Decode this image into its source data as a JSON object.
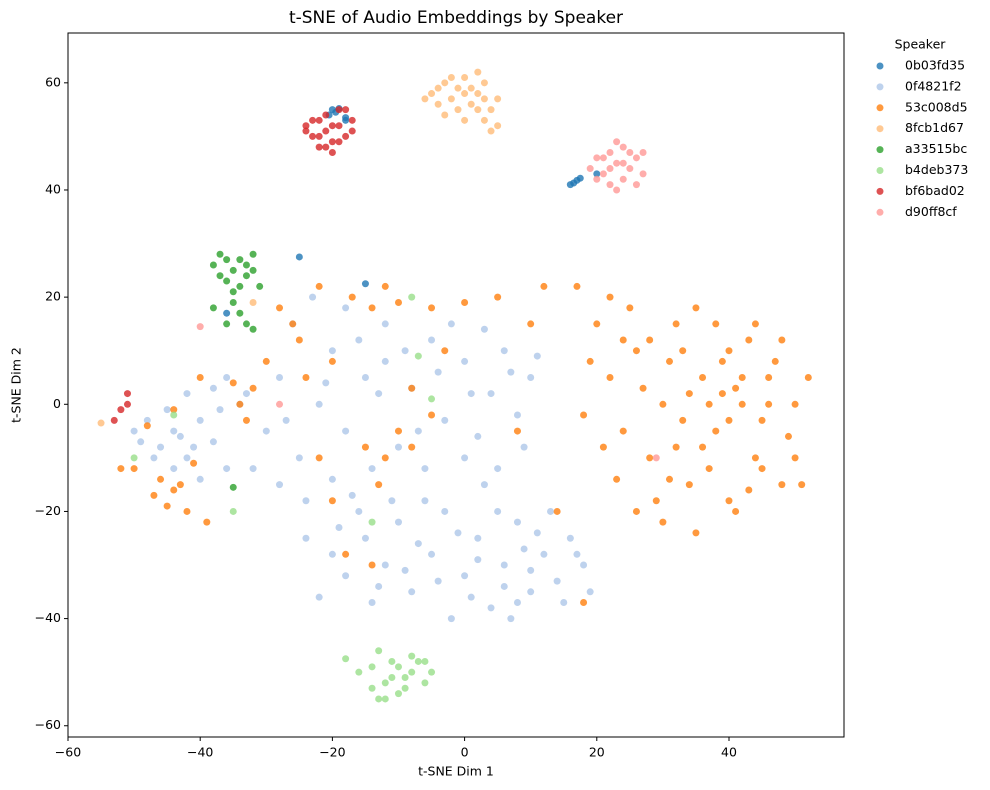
{
  "chart_data": {
    "type": "scatter",
    "title": "t-SNE of Audio Embeddings by Speaker",
    "xlabel": "t-SNE Dim 1",
    "ylabel": "t-SNE Dim 2",
    "legend_title": "Speaker",
    "legend": "right",
    "xlim": [
      -60,
      57.4
    ],
    "ylim": [
      -62.1,
      69.3
    ],
    "xticks": [
      {
        "value": -60,
        "label": "−60"
      },
      {
        "value": -40,
        "label": "−40"
      },
      {
        "value": -20,
        "label": "−20"
      },
      0,
      20,
      40
    ],
    "yticks": [
      {
        "value": -60,
        "label": "−60"
      },
      {
        "value": -40,
        "label": "−40"
      },
      {
        "value": -20,
        "label": "−20"
      },
      0,
      20,
      40,
      60
    ],
    "series": [
      {
        "name": "0b03fd35",
        "color": "#1f77b4",
        "x": [
          -20,
          -19.5,
          -20.5,
          -19,
          -18,
          16,
          16.5,
          17,
          17.5,
          20,
          -25,
          -15,
          -36,
          -18
        ],
        "y": [
          55,
          54.5,
          54,
          55.2,
          53,
          41,
          41.3,
          41.8,
          42.2,
          43,
          27.5,
          22.5,
          17,
          53.5
        ]
      },
      {
        "name": "0f4821f2",
        "color": "#aec7e8",
        "x": [
          -15,
          -12,
          -10,
          -8,
          -5,
          -3,
          0,
          2,
          4,
          6,
          8,
          10,
          12,
          14,
          16,
          18,
          -18,
          -20,
          -22,
          -24,
          -14,
          -6,
          -2,
          3,
          7,
          11,
          15,
          19,
          -11,
          -16,
          5,
          1,
          -7,
          9,
          13,
          -1,
          -9,
          6,
          17,
          -19,
          -13,
          8,
          -4,
          2,
          10,
          -30,
          -28,
          -25,
          -22,
          -20,
          -18,
          -15,
          -12,
          -10,
          -8,
          -5,
          -3,
          0,
          2,
          4,
          6,
          8,
          10,
          -26,
          -23,
          -18,
          -14,
          -6,
          0,
          5,
          -32,
          -28,
          -24,
          -20,
          -16,
          -9,
          -2,
          3,
          7,
          11,
          -33,
          -27,
          -21,
          -13,
          -7,
          1,
          -17,
          -12,
          -4,
          9,
          -50,
          -48,
          -46,
          -44,
          -42,
          -40,
          -38,
          -45,
          -43,
          -47,
          -36,
          -40,
          -34,
          -36,
          -38,
          -42,
          -49,
          -41,
          -44,
          -37
        ],
        "y": [
          -25,
          -30,
          -22,
          -35,
          -28,
          -20,
          -32,
          -25,
          -38,
          -30,
          -22,
          -35,
          -28,
          -33,
          -25,
          -30,
          -32,
          -28,
          -36,
          -25,
          -37,
          -18,
          -40,
          -15,
          -40,
          -24,
          -37,
          -35,
          -18,
          -20,
          -20,
          -36,
          -26,
          -27,
          -20,
          -24,
          -31,
          -34,
          -28,
          -23,
          -34,
          -37,
          -33,
          -29,
          -31,
          -5,
          5,
          -10,
          0,
          10,
          -5,
          5,
          15,
          -8,
          3,
          12,
          -3,
          8,
          -6,
          2,
          10,
          -2,
          5,
          15,
          20,
          18,
          -12,
          -12,
          -10,
          -12,
          -12,
          -15,
          -18,
          -14,
          12,
          10,
          15,
          14,
          6,
          9,
          2,
          -3,
          4,
          2,
          -5,
          2,
          -17,
          8,
          6,
          -8,
          -5,
          -3,
          -8,
          -5,
          -10,
          -3,
          -7,
          -1,
          -6,
          -10,
          -12,
          -14,
          0,
          5,
          3,
          2,
          -7,
          -8,
          -12,
          -1
        ]
      },
      {
        "name": "53c008d5",
        "color": "#ff7f0e",
        "x": [
          20,
          22,
          24,
          26,
          28,
          30,
          32,
          34,
          36,
          38,
          40,
          42,
          44,
          46,
          48,
          50,
          52,
          18,
          21,
          25,
          27,
          29,
          31,
          33,
          35,
          37,
          39,
          41,
          43,
          45,
          47,
          49,
          19,
          23,
          26,
          30,
          35,
          40,
          44,
          38,
          33,
          36,
          40,
          42,
          37,
          39,
          34,
          32,
          28,
          24,
          22,
          17,
          45,
          48,
          50,
          51,
          31,
          43,
          46,
          41,
          -28,
          -25,
          -22,
          -20,
          -17,
          -14,
          -12,
          -10,
          -8,
          -5,
          -3,
          0,
          5,
          10,
          12,
          -15,
          -12,
          -10,
          -8,
          -13,
          -18,
          -14,
          -20,
          -26,
          -24,
          -30,
          -32,
          -34,
          -22,
          -5,
          8,
          14,
          18,
          -52,
          -50,
          -47,
          -45,
          -44,
          -43,
          -42,
          -46,
          -48,
          -44,
          -41,
          -40,
          -39,
          -35,
          -33
        ],
        "y": [
          15,
          5,
          -5,
          10,
          -10,
          0,
          15,
          -15,
          5,
          -5,
          10,
          0,
          -10,
          5,
          -15,
          0,
          5,
          -2,
          -8,
          18,
          3,
          -18,
          8,
          -3,
          18,
          -12,
          2,
          -20,
          12,
          -3,
          8,
          -6,
          8,
          -14,
          -20,
          -22,
          -24,
          -18,
          15,
          15,
          10,
          -8,
          -3,
          5,
          0,
          8,
          2,
          -8,
          12,
          12,
          20,
          22,
          -12,
          12,
          -10,
          -15,
          -14,
          -16,
          0,
          3,
          18,
          12,
          22,
          8,
          20,
          18,
          22,
          19,
          3,
          18,
          10,
          19,
          20,
          15,
          22,
          -8,
          -10,
          -5,
          -8,
          -15,
          -28,
          -30,
          -18,
          15,
          5,
          8,
          3,
          0,
          -10,
          -2,
          -5,
          -20,
          -37,
          -12,
          -12,
          -17,
          -19,
          -16,
          -15,
          -20,
          -14,
          -4,
          -1,
          -11,
          5,
          -22,
          4,
          -3
        ]
      },
      {
        "name": "8fcb1d67",
        "color": "#ffbb78",
        "x": [
          -5,
          -4,
          -3,
          -2,
          -1,
          0,
          1,
          2,
          3,
          4,
          5,
          -6,
          -3,
          -1,
          0,
          2,
          3,
          4,
          5,
          1,
          -2,
          -4,
          2,
          0,
          3,
          -55,
          -32
        ],
        "y": [
          58,
          56,
          60,
          57,
          59,
          61,
          56,
          58,
          60,
          55,
          57,
          57,
          54,
          55,
          58,
          62,
          53,
          51,
          52,
          59,
          61,
          59,
          55,
          53,
          57,
          -3.5,
          19
        ]
      },
      {
        "name": "a33515bc",
        "color": "#2ca02c",
        "x": [
          -38,
          -37,
          -36,
          -35,
          -34,
          -33,
          -32,
          -36,
          -35,
          -34,
          -33,
          -32,
          -37,
          -35,
          -34,
          -33,
          -32,
          -31,
          -36,
          -38,
          -35
        ],
        "y": [
          26,
          28,
          27,
          25,
          27,
          26,
          28,
          23,
          21,
          22,
          24,
          25,
          24,
          19,
          17,
          15,
          14,
          22,
          15,
          18,
          -15.5
        ]
      },
      {
        "name": "b4deb373",
        "color": "#98df8a",
        "x": [
          -18,
          -16,
          -14,
          -13,
          -12,
          -11,
          -10,
          -9,
          -8,
          -7,
          -6,
          -5,
          -12,
          -14,
          -10,
          -8,
          -11,
          -13,
          -9,
          -6,
          -50,
          -35,
          -8,
          -7,
          -44,
          -5,
          -14
        ],
        "y": [
          -47.5,
          -50,
          -53,
          -46,
          -55,
          -51,
          -49,
          -53,
          -50,
          -48,
          -52,
          -50,
          -52,
          -49,
          -54,
          -47,
          -48,
          -55,
          -51,
          -48,
          -10,
          -20,
          20,
          9,
          -2,
          1,
          -22
        ]
      },
      {
        "name": "bf6bad02",
        "color": "#d62728",
        "x": [
          -24,
          -23,
          -22,
          -21,
          -20,
          -19,
          -18,
          -17,
          -22,
          -20,
          -23,
          -21,
          -19,
          -18,
          -20,
          -22,
          -21,
          -24,
          -19,
          -17,
          -51,
          -51,
          -52,
          -53
        ],
        "y": [
          52,
          50,
          53,
          51,
          49,
          52,
          50,
          51,
          48,
          47,
          53,
          54,
          55,
          55,
          52,
          50,
          48,
          51,
          49,
          53,
          2,
          0,
          -1,
          -3
        ]
      },
      {
        "name": "d90ff8cf",
        "color": "#ff9896",
        "x": [
          19,
          20,
          21,
          22,
          23,
          24,
          25,
          26,
          27,
          22,
          23,
          24,
          21,
          25,
          20,
          26,
          23,
          22,
          24,
          27,
          -40,
          29,
          -28
        ],
        "y": [
          44,
          46,
          43,
          47,
          45,
          48,
          44,
          46,
          43,
          41,
          40,
          42,
          46,
          47,
          42,
          41,
          49,
          44,
          45,
          47,
          14.5,
          -10,
          0
        ]
      }
    ]
  }
}
